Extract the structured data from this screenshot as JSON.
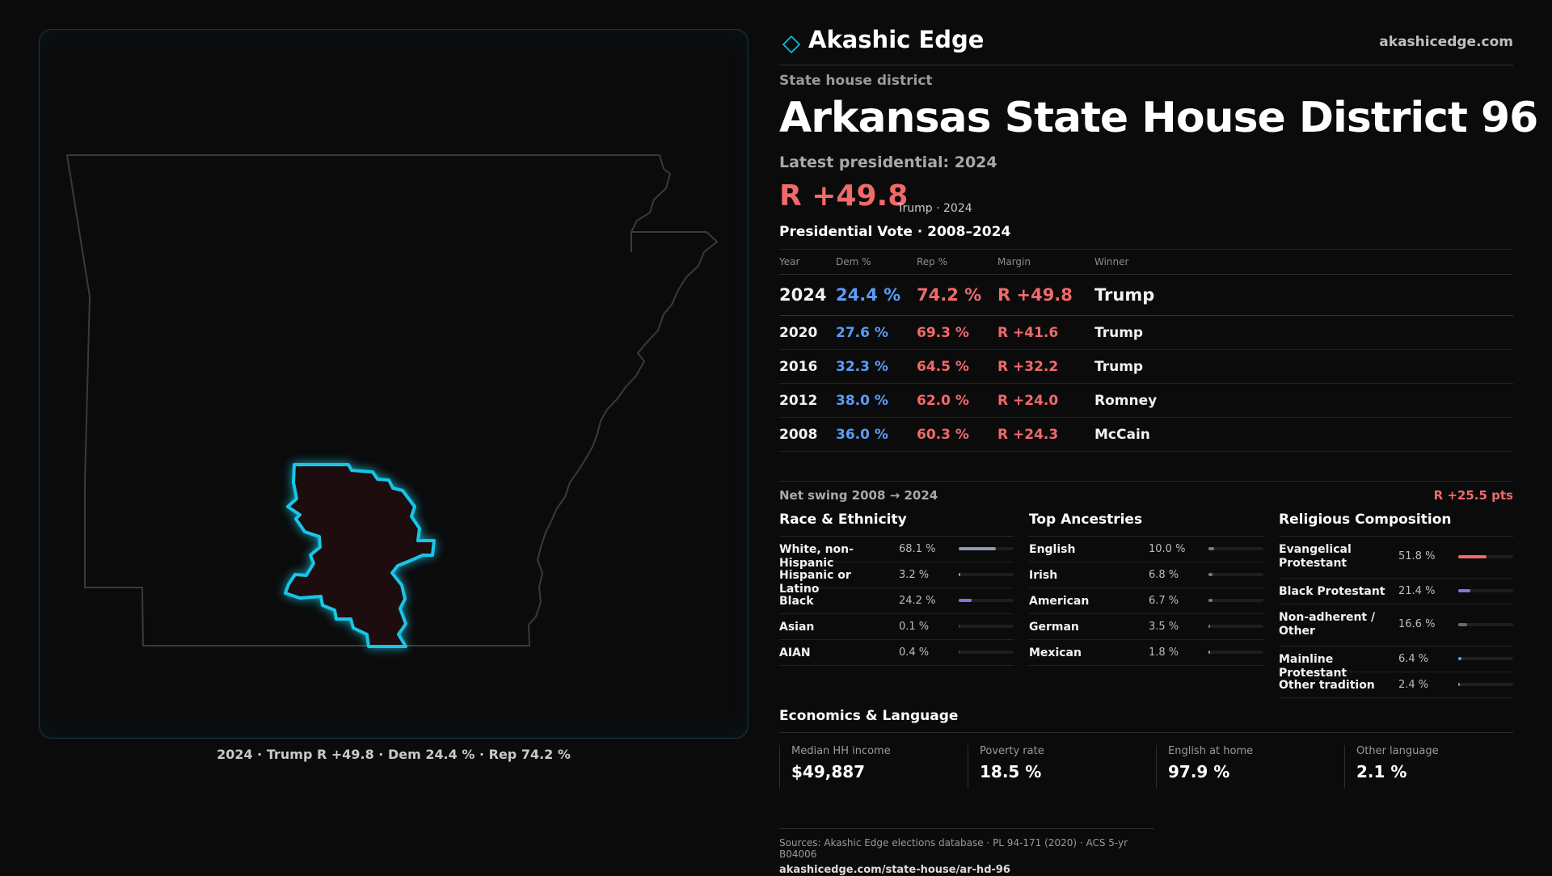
{
  "brand": {
    "name": "Akashic Edge",
    "site": "akashicedge.com",
    "logo_icon": "diamond-outline-icon",
    "accent": "#00c8e6"
  },
  "district": {
    "kind": "State house district",
    "title": "Arkansas State House District 96",
    "latest_label": "Latest presidential: 2024",
    "margin": "R +49.8",
    "margin_sub": "Trump · 2024"
  },
  "map": {
    "caption": "2024 · Trump R +49.8 · Dem 24.4 % · Rep 74.2 %",
    "outline_color": "#3a3a3a",
    "highlight_color": "#18c6e6",
    "fill_color": "#1e0d0e"
  },
  "votes": {
    "title": "Presidential Vote · 2008–2024",
    "headers": {
      "year": "Year",
      "dem": "Dem %",
      "rep": "Rep %",
      "margin": "Margin",
      "winner": "Winner"
    },
    "rows": [
      {
        "year": "2024",
        "dem": "24.4 %",
        "rep": "74.2 %",
        "margin": "R +49.8",
        "winner": "Trump"
      },
      {
        "year": "2020",
        "dem": "27.6 %",
        "rep": "69.3 %",
        "margin": "R +41.6",
        "winner": "Trump"
      },
      {
        "year": "2016",
        "dem": "32.3 %",
        "rep": "64.5 %",
        "margin": "R +32.2",
        "winner": "Trump"
      },
      {
        "year": "2012",
        "dem": "38.0 %",
        "rep": "62.0 %",
        "margin": "R +24.0",
        "winner": "Romney"
      },
      {
        "year": "2008",
        "dem": "36.0 %",
        "rep": "60.3 %",
        "margin": "R +24.3",
        "winner": "McCain"
      }
    ],
    "colors": {
      "dem": "#5b9cf5",
      "rep": "#f06a6a"
    }
  },
  "swing": {
    "label": "Net swing 2008 → 2024",
    "value": "R +25.5 pts"
  },
  "race": {
    "title": "Race & Ethnicity",
    "items": [
      {
        "label": "White, non-Hispanic",
        "value": "68.1 %",
        "pct": 68.1,
        "color": "#8a9bb0"
      },
      {
        "label": "Hispanic or Latino",
        "value": "3.2 %",
        "pct": 3.2,
        "color": "#e08a3c"
      },
      {
        "label": "Black",
        "value": "24.2 %",
        "pct": 24.2,
        "color": "#8b6fdc"
      },
      {
        "label": "Asian",
        "value": "0.1 %",
        "pct": 0.1,
        "color": "#3a3a3a"
      },
      {
        "label": "AIAN",
        "value": "0.4 %",
        "pct": 0.4,
        "color": "#3a3a3a"
      }
    ]
  },
  "ancestry": {
    "title": "Top Ancestries",
    "items": [
      {
        "label": "English",
        "value": "10.0 %",
        "pct": 10.0,
        "color": "#7a7a7a"
      },
      {
        "label": "Irish",
        "value": "6.8 %",
        "pct": 6.8,
        "color": "#7a7a7a"
      },
      {
        "label": "American",
        "value": "6.7 %",
        "pct": 6.7,
        "color": "#7a7a7a"
      },
      {
        "label": "German",
        "value": "3.5 %",
        "pct": 3.5,
        "color": "#7a7a7a"
      },
      {
        "label": "Mexican",
        "value": "1.8 %",
        "pct": 1.8,
        "color": "#e08a3c"
      }
    ]
  },
  "religion": {
    "title": "Religious Composition",
    "items": [
      {
        "label": "Evangelical Protestant",
        "value": "51.8 %",
        "pct": 51.8,
        "color": "#f06a6a"
      },
      {
        "label": "Black Protestant",
        "value": "21.4 %",
        "pct": 21.4,
        "color": "#8b6fdc"
      },
      {
        "label": "Non-adherent / Other",
        "value": "16.6 %",
        "pct": 16.6,
        "color": "#6a6a6a"
      },
      {
        "label": "Mainline Protestant",
        "value": "6.4 %",
        "pct": 6.4,
        "color": "#5b9cf5"
      },
      {
        "label": "Other tradition",
        "value": "2.4 %",
        "pct": 2.4,
        "color": "#8a8a8a"
      }
    ]
  },
  "economics": {
    "title": "Economics & Language",
    "cells": [
      {
        "label": "Median HH income",
        "value": "$49,887"
      },
      {
        "label": "Poverty rate",
        "value": "18.5 %"
      },
      {
        "label": "English at home",
        "value": "97.9 %"
      },
      {
        "label": "Other language",
        "value": "2.1 %"
      }
    ]
  },
  "footer": {
    "sources": "Sources: Akashic Edge elections database · PL 94-171 (2020) · ACS 5-yr B04006",
    "url": "akashicedge.com/state-house/ar-hd-96"
  }
}
